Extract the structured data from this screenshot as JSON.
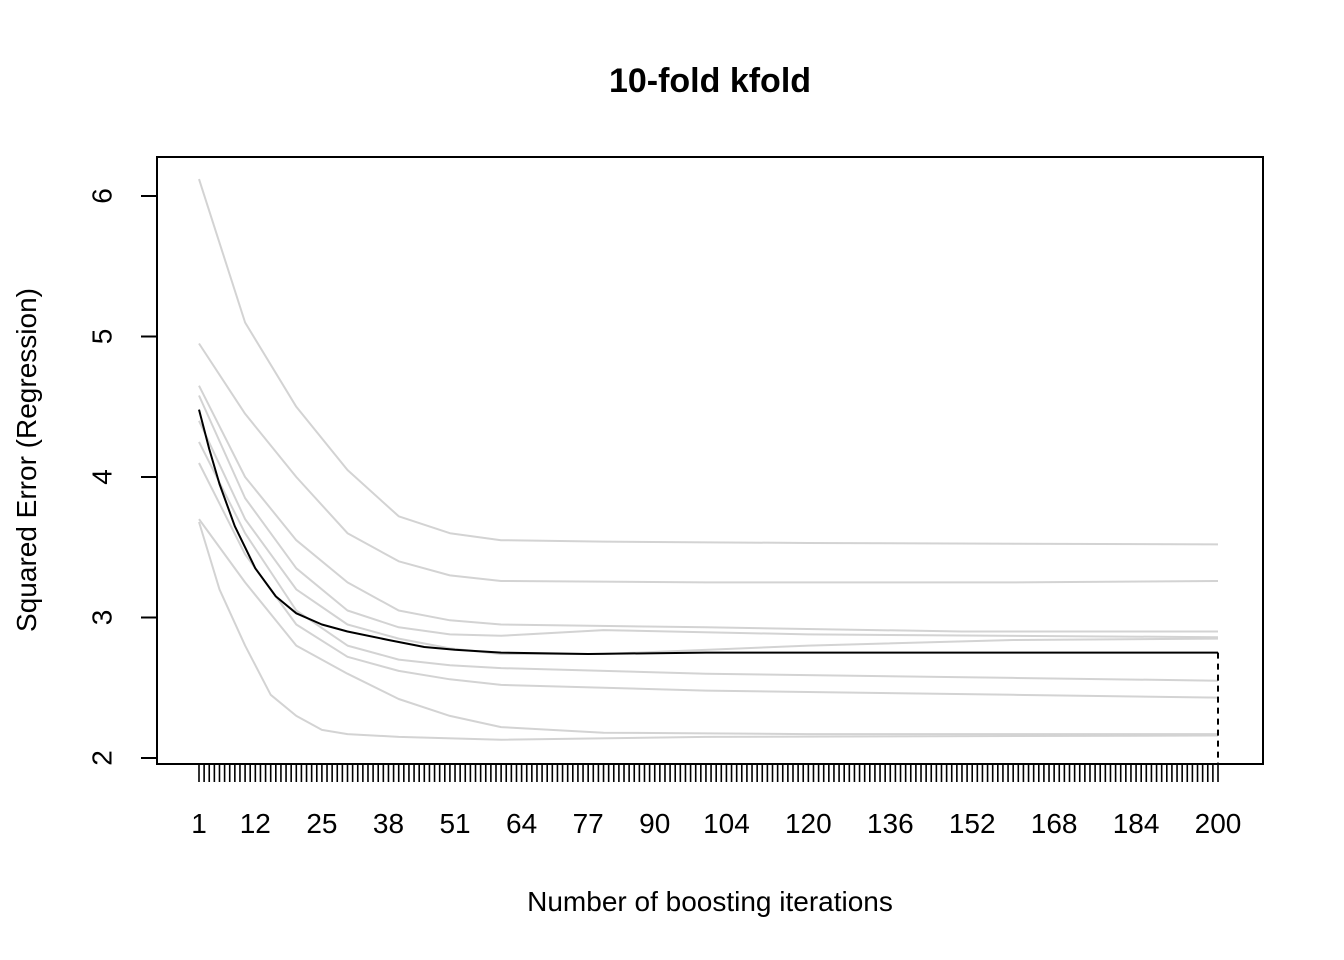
{
  "chart_data": {
    "type": "line",
    "title": "10-fold kfold",
    "xlabel": "Number of boosting iterations",
    "ylabel": "Squared Error (Regression)",
    "xlim": [
      1,
      200
    ],
    "ylim": [
      2,
      6.1
    ],
    "x_tick_labels": [
      "1",
      "12",
      "25",
      "38",
      "51",
      "64",
      "77",
      "90",
      "104",
      "120",
      "136",
      "152",
      "168",
      "184",
      "200"
    ],
    "y_ticks": [
      2,
      3,
      4,
      5,
      6
    ],
    "minor_x_ticks": "every iteration 1-200",
    "grid": false,
    "legend": "none",
    "colors": {
      "folds": "#d3d3d3",
      "mean": "#000000",
      "best_marker": "#000000"
    },
    "best_iteration": 200,
    "series": [
      {
        "role": "fold",
        "values": [
          [
            1,
            6.12
          ],
          [
            10,
            5.1
          ],
          [
            20,
            4.5
          ],
          [
            30,
            4.05
          ],
          [
            40,
            3.72
          ],
          [
            50,
            3.6
          ],
          [
            60,
            3.55
          ],
          [
            80,
            3.54
          ],
          [
            120,
            3.53
          ],
          [
            200,
            3.52
          ]
        ]
      },
      {
        "role": "fold",
        "values": [
          [
            1,
            4.95
          ],
          [
            10,
            4.45
          ],
          [
            20,
            4.0
          ],
          [
            30,
            3.6
          ],
          [
            40,
            3.4
          ],
          [
            50,
            3.3
          ],
          [
            60,
            3.26
          ],
          [
            100,
            3.25
          ],
          [
            160,
            3.25
          ],
          [
            200,
            3.26
          ]
        ]
      },
      {
        "role": "fold",
        "values": [
          [
            1,
            4.65
          ],
          [
            10,
            4.0
          ],
          [
            20,
            3.55
          ],
          [
            30,
            3.25
          ],
          [
            40,
            3.05
          ],
          [
            50,
            2.98
          ],
          [
            60,
            2.95
          ],
          [
            100,
            2.93
          ],
          [
            150,
            2.9
          ],
          [
            200,
            2.9
          ]
        ]
      },
      {
        "role": "fold",
        "values": [
          [
            1,
            4.58
          ],
          [
            10,
            3.85
          ],
          [
            20,
            3.35
          ],
          [
            30,
            3.05
          ],
          [
            40,
            2.93
          ],
          [
            50,
            2.88
          ],
          [
            60,
            2.87
          ],
          [
            80,
            2.91
          ],
          [
            120,
            2.88
          ],
          [
            200,
            2.86
          ]
        ]
      },
      {
        "role": "fold",
        "values": [
          [
            1,
            4.4
          ],
          [
            10,
            3.7
          ],
          [
            20,
            3.2
          ],
          [
            30,
            2.95
          ],
          [
            40,
            2.85
          ],
          [
            50,
            2.78
          ],
          [
            60,
            2.74
          ],
          [
            80,
            2.74
          ],
          [
            120,
            2.8
          ],
          [
            160,
            2.84
          ],
          [
            200,
            2.85
          ]
        ]
      },
      {
        "role": "fold",
        "values": [
          [
            1,
            4.25
          ],
          [
            10,
            3.6
          ],
          [
            20,
            3.05
          ],
          [
            30,
            2.8
          ],
          [
            40,
            2.7
          ],
          [
            50,
            2.66
          ],
          [
            60,
            2.64
          ],
          [
            100,
            2.6
          ],
          [
            160,
            2.57
          ],
          [
            200,
            2.55
          ]
        ]
      },
      {
        "role": "fold",
        "values": [
          [
            1,
            4.1
          ],
          [
            10,
            3.45
          ],
          [
            20,
            2.95
          ],
          [
            30,
            2.72
          ],
          [
            40,
            2.62
          ],
          [
            50,
            2.56
          ],
          [
            60,
            2.52
          ],
          [
            100,
            2.48
          ],
          [
            160,
            2.45
          ],
          [
            200,
            2.43
          ]
        ]
      },
      {
        "role": "fold",
        "values": [
          [
            1,
            3.7
          ],
          [
            10,
            3.25
          ],
          [
            20,
            2.8
          ],
          [
            30,
            2.6
          ],
          [
            40,
            2.42
          ],
          [
            50,
            2.3
          ],
          [
            60,
            2.22
          ],
          [
            80,
            2.18
          ],
          [
            120,
            2.17
          ],
          [
            200,
            2.17
          ]
        ]
      },
      {
        "role": "fold",
        "values": [
          [
            1,
            3.68
          ],
          [
            5,
            3.2
          ],
          [
            10,
            2.8
          ],
          [
            15,
            2.45
          ],
          [
            20,
            2.3
          ],
          [
            25,
            2.2
          ],
          [
            30,
            2.17
          ],
          [
            40,
            2.15
          ],
          [
            60,
            2.13
          ],
          [
            100,
            2.15
          ],
          [
            200,
            2.16
          ]
        ]
      },
      {
        "role": "mean",
        "values": [
          [
            1,
            4.48
          ],
          [
            3,
            4.2
          ],
          [
            5,
            3.95
          ],
          [
            8,
            3.65
          ],
          [
            12,
            3.35
          ],
          [
            16,
            3.15
          ],
          [
            20,
            3.03
          ],
          [
            25,
            2.95
          ],
          [
            30,
            2.9
          ],
          [
            38,
            2.84
          ],
          [
            45,
            2.79
          ],
          [
            51,
            2.77
          ],
          [
            60,
            2.75
          ],
          [
            77,
            2.74
          ],
          [
            100,
            2.75
          ],
          [
            150,
            2.75
          ],
          [
            200,
            2.75
          ]
        ]
      }
    ]
  }
}
